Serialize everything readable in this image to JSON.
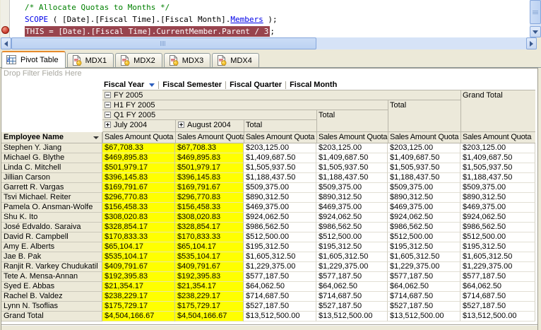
{
  "code_editor": {
    "line1": {
      "comment": "/* Allocate Quotas to Months */"
    },
    "line2": {
      "keyword": "SCOPE",
      "mid": " ( [Date].[Fiscal Time].[Fiscal Month].",
      "function": "Members",
      "end": " );"
    },
    "line3": {
      "highlighted": "THIS = [Date].[Fiscal Time].CurrentMember.Parent / 3",
      "end": ";"
    },
    "highlight_color": "#98444E",
    "breakpoint_color": "#D04A3A"
  },
  "tabs": [
    {
      "label": "Pivot Table",
      "active": true
    },
    {
      "label": "MDX1",
      "active": false
    },
    {
      "label": "MDX2",
      "active": false
    },
    {
      "label": "MDX3",
      "active": false
    },
    {
      "label": "MDX4",
      "active": false
    }
  ],
  "pivot": {
    "filter_hint": "Drop Filter Fields Here",
    "column_fields": [
      "Fiscal Year",
      "Fiscal Semester",
      "Fiscal Quarter",
      "Fiscal Month"
    ],
    "row_field": "Employee Name",
    "measure_label": "Sales Amount Quota",
    "headers": {
      "year": "FY 2005",
      "semester": "H1 FY 2005",
      "quarter": "Q1 FY 2005",
      "month1": "July 2004",
      "month2": "August 2004",
      "total": "Total",
      "grand_total": "Grand Total"
    },
    "month_highlight_color": "#FFFF00",
    "rows": [
      {
        "name": "Stephen Y. Jiang",
        "month": "$67,708.33",
        "total": "$203,125.00"
      },
      {
        "name": "Michael G. Blythe",
        "month": "$469,895.83",
        "total": "$1,409,687.50"
      },
      {
        "name": "Linda C. Mitchell",
        "month": "$501,979.17",
        "total": "$1,505,937.50"
      },
      {
        "name": "Jillian Carson",
        "month": "$396,145.83",
        "total": "$1,188,437.50"
      },
      {
        "name": "Garrett R. Vargas",
        "month": "$169,791.67",
        "total": "$509,375.00"
      },
      {
        "name": "Tsvi Michael. Reiter",
        "month": "$296,770.83",
        "total": "$890,312.50"
      },
      {
        "name": "Pamela O. Ansman-Wolfe",
        "month": "$156,458.33",
        "total": "$469,375.00"
      },
      {
        "name": "Shu K. Ito",
        "month": "$308,020.83",
        "total": "$924,062.50"
      },
      {
        "name": "José Edvaldo. Saraiva",
        "month": "$328,854.17",
        "total": "$986,562.50"
      },
      {
        "name": "David R. Campbell",
        "month": "$170,833.33",
        "total": "$512,500.00"
      },
      {
        "name": "Amy E. Alberts",
        "month": "$65,104.17",
        "total": "$195,312.50"
      },
      {
        "name": "Jae B. Pak",
        "month": "$535,104.17",
        "total": "$1,605,312.50"
      },
      {
        "name": "Ranjit R. Varkey Chudukatil",
        "month": "$409,791.67",
        "total": "$1,229,375.00"
      },
      {
        "name": "Tete A. Mensa-Annan",
        "month": "$192,395.83",
        "total": "$577,187.50"
      },
      {
        "name": "Syed E. Abbas",
        "month": "$21,354.17",
        "total": "$64,062.50"
      },
      {
        "name": "Rachel B. Valdez",
        "month": "$238,229.17",
        "total": "$714,687.50"
      },
      {
        "name": "Lynn N. Tsoflias",
        "month": "$175,729.17",
        "total": "$527,187.50"
      },
      {
        "name": "Grand Total",
        "month": "$4,504,166.67",
        "total": "$13,512,500.00"
      }
    ]
  }
}
